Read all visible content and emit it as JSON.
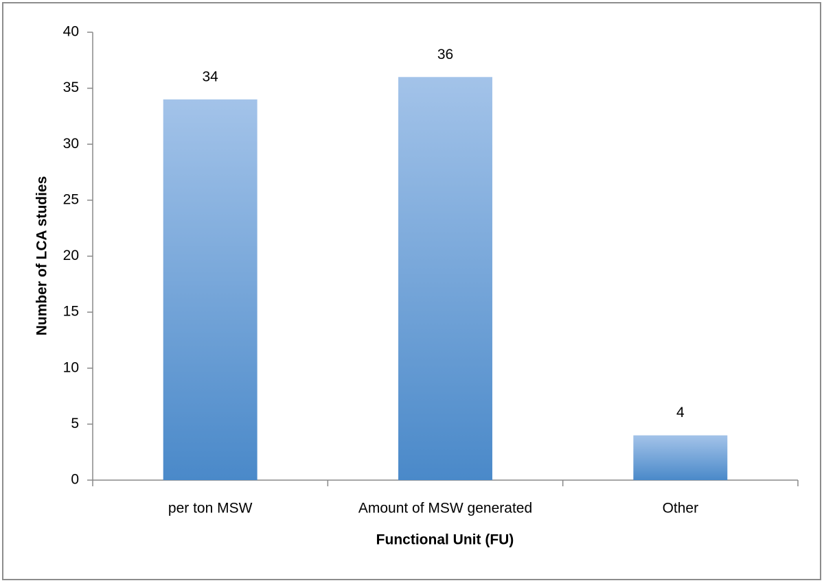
{
  "chart_data": {
    "type": "bar",
    "x_label": "Functional Unit (FU)",
    "y_label": "Number of LCA studies",
    "categories": [
      "per ton MSW",
      "Amount of MSW generated",
      "Other"
    ],
    "values": [
      34,
      36,
      4
    ],
    "value_labels_shown": true,
    "gradient": [
      "#a3c3e9",
      "#4a89c9"
    ],
    "ylim": [
      0,
      40
    ],
    "yticks": [
      0,
      5,
      10,
      15,
      20,
      25,
      30,
      35,
      40
    ],
    "grid": false
  }
}
